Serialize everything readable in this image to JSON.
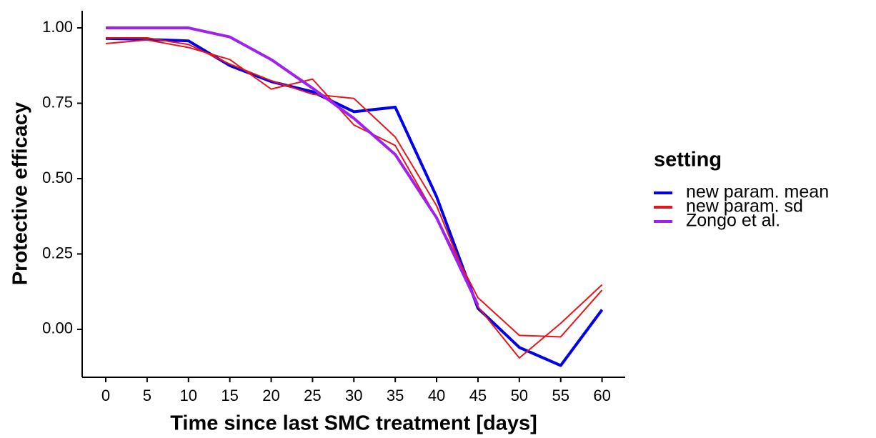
{
  "chart_data": {
    "type": "line",
    "xlabel": "Time since last SMC treatment [days]",
    "ylabel": "Protective efficacy",
    "legend_title": "setting",
    "x": [
      0,
      5,
      10,
      15,
      20,
      25,
      30,
      35,
      40,
      45,
      50,
      55,
      60
    ],
    "series": [
      {
        "name": "new param. mean",
        "color": "#0000ee",
        "width": 4,
        "values": [
          0.965,
          0.962,
          0.957,
          0.875,
          0.822,
          0.788,
          0.722,
          0.737,
          0.44,
          0.07,
          -0.06,
          -0.12,
          0.065
        ]
      },
      {
        "name": "new param. sd",
        "color": "#e8161b",
        "width": 2,
        "values": [
          0.948,
          0.96,
          0.935,
          0.895,
          0.797,
          0.83,
          0.678,
          0.61,
          0.37,
          0.105,
          -0.02,
          -0.025,
          0.13
        ]
      },
      {
        "name": "new param. sd",
        "color": "#e8161b",
        "width": 2,
        "values": [
          0.967,
          0.967,
          0.945,
          0.88,
          0.825,
          0.78,
          0.766,
          0.638,
          0.41,
          0.075,
          -0.095,
          0.02,
          0.148
        ]
      },
      {
        "name": "Zongo et al.",
        "color": "#a020f0",
        "width": 4,
        "values": [
          1.0,
          1.0,
          1.0,
          0.97,
          0.895,
          0.8,
          0.7,
          0.58,
          0.37,
          0.08,
          null,
          null,
          null
        ]
      }
    ],
    "xlim": [
      -2.85,
      62.8
    ],
    "ylim": [
      -0.159,
      1.057
    ],
    "xticks": [
      0,
      5,
      10,
      15,
      20,
      25,
      30,
      35,
      40,
      45,
      50,
      55,
      60
    ],
    "yticks": [
      {
        "value": 0,
        "label": "0.00"
      },
      0.25,
      {
        "value": 0.5,
        "label": "0.50"
      },
      0.75,
      {
        "value": 1,
        "label": "1.00"
      }
    ],
    "grid": false
  }
}
